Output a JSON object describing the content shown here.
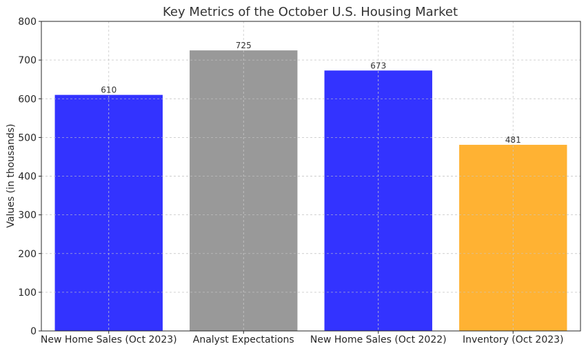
{
  "chart_data": {
    "type": "bar",
    "title": "Key Metrics of the October U.S. Housing Market",
    "xlabel": "",
    "ylabel": "Values (in thousands)",
    "categories": [
      "New Home Sales (Oct 2023)",
      "Analyst Expectations",
      "New Home Sales (Oct 2022)",
      "Inventory (Oct 2023)"
    ],
    "values": [
      610,
      725,
      673,
      481
    ],
    "bar_colors": [
      "#3333ff",
      "#999999",
      "#3333ff",
      "#ffb233"
    ],
    "data_labels": [
      "610",
      "725",
      "673",
      "481"
    ],
    "ylim": [
      0,
      800
    ],
    "yticks": [
      0,
      100,
      200,
      300,
      400,
      500,
      600,
      700,
      800
    ],
    "grid": true,
    "grid_style": "dashed",
    "legend": "none"
  }
}
